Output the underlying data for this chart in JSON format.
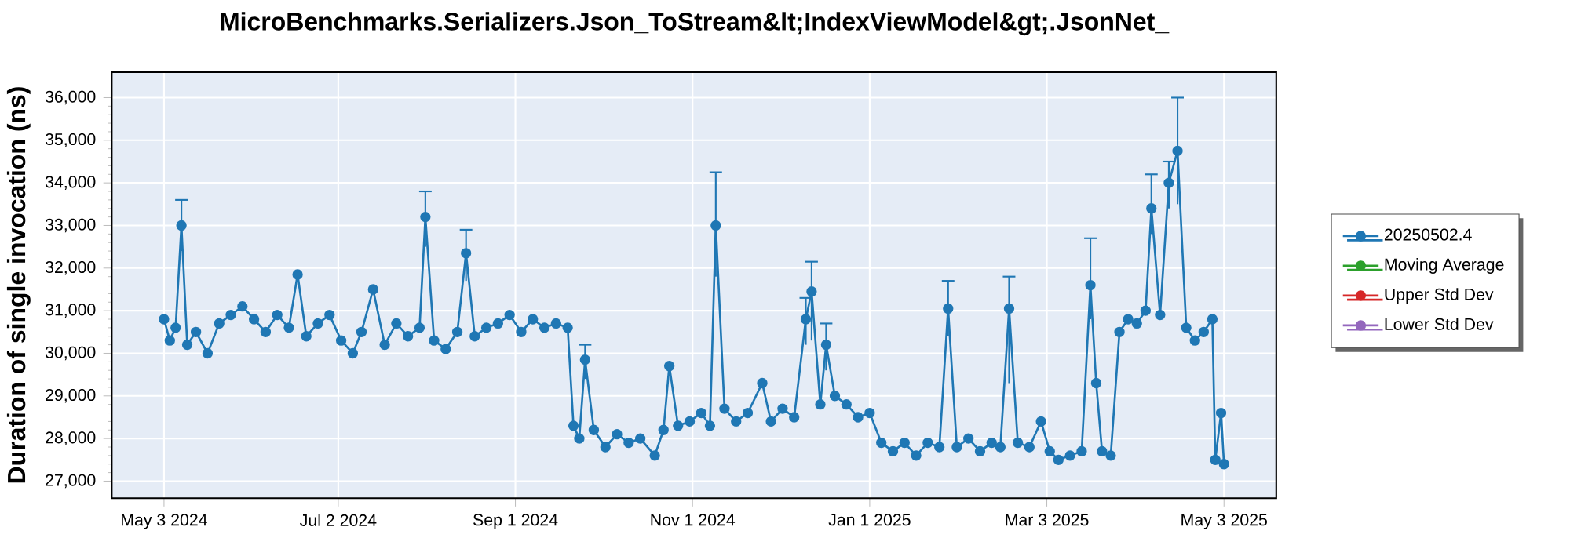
{
  "chart_data": {
    "type": "line",
    "title": "MicroBenchmarks.Serializers.Json_ToStream&lt;IndexViewModel&gt;.JsonNet_",
    "ylabel": "Duration of single invocation (ns)",
    "series": [
      {
        "name": "20250502.4",
        "color": "#1f77b4",
        "x": [
          "2024-05-03",
          "2024-05-05",
          "2024-05-07",
          "2024-05-09",
          "2024-05-11",
          "2024-05-14",
          "2024-05-18",
          "2024-05-22",
          "2024-05-26",
          "2024-05-30",
          "2024-06-03",
          "2024-06-07",
          "2024-06-11",
          "2024-06-15",
          "2024-06-18",
          "2024-06-21",
          "2024-06-25",
          "2024-06-29",
          "2024-07-03",
          "2024-07-07",
          "2024-07-10",
          "2024-07-14",
          "2024-07-18",
          "2024-07-22",
          "2024-07-26",
          "2024-07-30",
          "2024-08-01",
          "2024-08-04",
          "2024-08-08",
          "2024-08-12",
          "2024-08-15",
          "2024-08-18",
          "2024-08-22",
          "2024-08-26",
          "2024-08-30",
          "2024-09-03",
          "2024-09-07",
          "2024-09-11",
          "2024-09-15",
          "2024-09-19",
          "2024-09-21",
          "2024-09-23",
          "2024-09-25",
          "2024-09-28",
          "2024-10-02",
          "2024-10-06",
          "2024-10-10",
          "2024-10-14",
          "2024-10-19",
          "2024-10-22",
          "2024-10-24",
          "2024-10-27",
          "2024-10-31",
          "2024-11-04",
          "2024-11-07",
          "2024-11-09",
          "2024-11-12",
          "2024-11-16",
          "2024-11-20",
          "2024-11-25",
          "2024-11-28",
          "2024-12-02",
          "2024-12-06",
          "2024-12-10",
          "2024-12-12",
          "2024-12-15",
          "2024-12-17",
          "2024-12-20",
          "2024-12-24",
          "2024-12-28",
          "2025-01-01",
          "2025-01-05",
          "2025-01-09",
          "2025-01-13",
          "2025-01-17",
          "2025-01-21",
          "2025-01-25",
          "2025-01-28",
          "2025-01-31",
          "2025-02-04",
          "2025-02-08",
          "2025-02-12",
          "2025-02-15",
          "2025-02-18",
          "2025-02-21",
          "2025-02-25",
          "2025-03-01",
          "2025-03-04",
          "2025-03-07",
          "2025-03-11",
          "2025-03-15",
          "2025-03-18",
          "2025-03-20",
          "2025-03-22",
          "2025-03-25",
          "2025-03-28",
          "2025-03-31",
          "2025-04-03",
          "2025-04-06",
          "2025-04-08",
          "2025-04-11",
          "2025-04-14",
          "2025-04-17",
          "2025-04-20",
          "2025-04-23",
          "2025-04-26",
          "2025-04-29",
          "2025-04-30",
          "2025-05-02",
          "2025-05-03"
        ],
        "values": [
          30800,
          30300,
          30600,
          33000,
          30200,
          30500,
          30000,
          30700,
          30900,
          31100,
          30800,
          30500,
          30900,
          30600,
          31850,
          30400,
          30700,
          30900,
          30300,
          30000,
          30500,
          31500,
          30200,
          30700,
          30400,
          30600,
          33200,
          30300,
          30100,
          30500,
          32350,
          30400,
          30600,
          30700,
          30900,
          30500,
          30800,
          30600,
          30700,
          30600,
          28300,
          28000,
          29850,
          28200,
          27800,
          28100,
          27900,
          28000,
          27600,
          28200,
          29700,
          28300,
          28400,
          28600,
          28300,
          33000,
          28700,
          28400,
          28600,
          29300,
          28400,
          28700,
          28500,
          30800,
          31450,
          28800,
          30200,
          29000,
          28800,
          28500,
          28600,
          27900,
          27700,
          27900,
          27600,
          27900,
          27800,
          31050,
          27800,
          28000,
          27700,
          27900,
          27800,
          31050,
          27900,
          27800,
          28400,
          27700,
          27500,
          27600,
          27700,
          31600,
          29300,
          27700,
          27600,
          30500,
          30800,
          30700,
          31000,
          33400,
          30900,
          34000,
          34750,
          30600,
          30300,
          30500,
          30800,
          27500,
          28600,
          27400
        ],
        "errors": [
          null,
          null,
          null,
          [
            32400,
            33600
          ],
          null,
          null,
          null,
          null,
          null,
          null,
          null,
          null,
          null,
          null,
          null,
          null,
          null,
          null,
          null,
          null,
          null,
          null,
          null,
          null,
          null,
          null,
          [
            32500,
            33800
          ],
          null,
          null,
          null,
          [
            31700,
            32900
          ],
          null,
          null,
          null,
          null,
          null,
          null,
          null,
          null,
          null,
          null,
          null,
          [
            29400,
            30200
          ],
          null,
          null,
          null,
          null,
          null,
          null,
          null,
          null,
          null,
          null,
          null,
          null,
          [
            31800,
            34250
          ],
          null,
          null,
          null,
          null,
          null,
          null,
          null,
          [
            30200,
            31300
          ],
          [
            30300,
            32150
          ],
          null,
          [
            29600,
            30700
          ],
          null,
          null,
          null,
          null,
          null,
          null,
          null,
          null,
          null,
          null,
          [
            30400,
            31700
          ],
          null,
          null,
          null,
          null,
          null,
          [
            29300,
            31800
          ],
          null,
          null,
          null,
          null,
          null,
          null,
          null,
          [
            30800,
            32700
          ],
          null,
          null,
          null,
          null,
          null,
          null,
          null,
          [
            32800,
            34200
          ],
          null,
          [
            33400,
            34500
          ],
          [
            33500,
            36000
          ],
          null,
          null,
          null,
          null,
          null,
          null,
          null
        ]
      },
      {
        "name": "Moving Average",
        "color": "#2ca02c"
      },
      {
        "name": "Upper Std Dev",
        "color": "#d62728"
      },
      {
        "name": "Lower Std Dev",
        "color": "#9467bd"
      }
    ],
    "xlim": [
      "2024-04-15",
      "2025-05-21"
    ],
    "xticks": [
      {
        "value": "2024-05-03",
        "label": "May 3 2024"
      },
      {
        "value": "2024-07-02",
        "label": "Jul 2 2024"
      },
      {
        "value": "2024-09-01",
        "label": "Sep 1 2024"
      },
      {
        "value": "2024-11-01",
        "label": "Nov 1 2024"
      },
      {
        "value": "2025-01-01",
        "label": "Jan 1 2025"
      },
      {
        "value": "2025-03-03",
        "label": "Mar 3 2025"
      },
      {
        "value": "2025-05-03",
        "label": "May 3 2025"
      }
    ],
    "ylim": [
      26600,
      36600
    ],
    "yticks": [
      {
        "value": 27000,
        "label": "27,000"
      },
      {
        "value": 28000,
        "label": "28,000"
      },
      {
        "value": 29000,
        "label": "29,000"
      },
      {
        "value": 30000,
        "label": "30,000"
      },
      {
        "value": 31000,
        "label": "31,000"
      },
      {
        "value": 32000,
        "label": "32,000"
      },
      {
        "value": 33000,
        "label": "33,000"
      },
      {
        "value": 34000,
        "label": "34,000"
      },
      {
        "value": 35000,
        "label": "35,000"
      },
      {
        "value": 36000,
        "label": "36,000"
      }
    ],
    "grid": true,
    "legend": "right",
    "marker": "circle",
    "line_style": "solid"
  }
}
